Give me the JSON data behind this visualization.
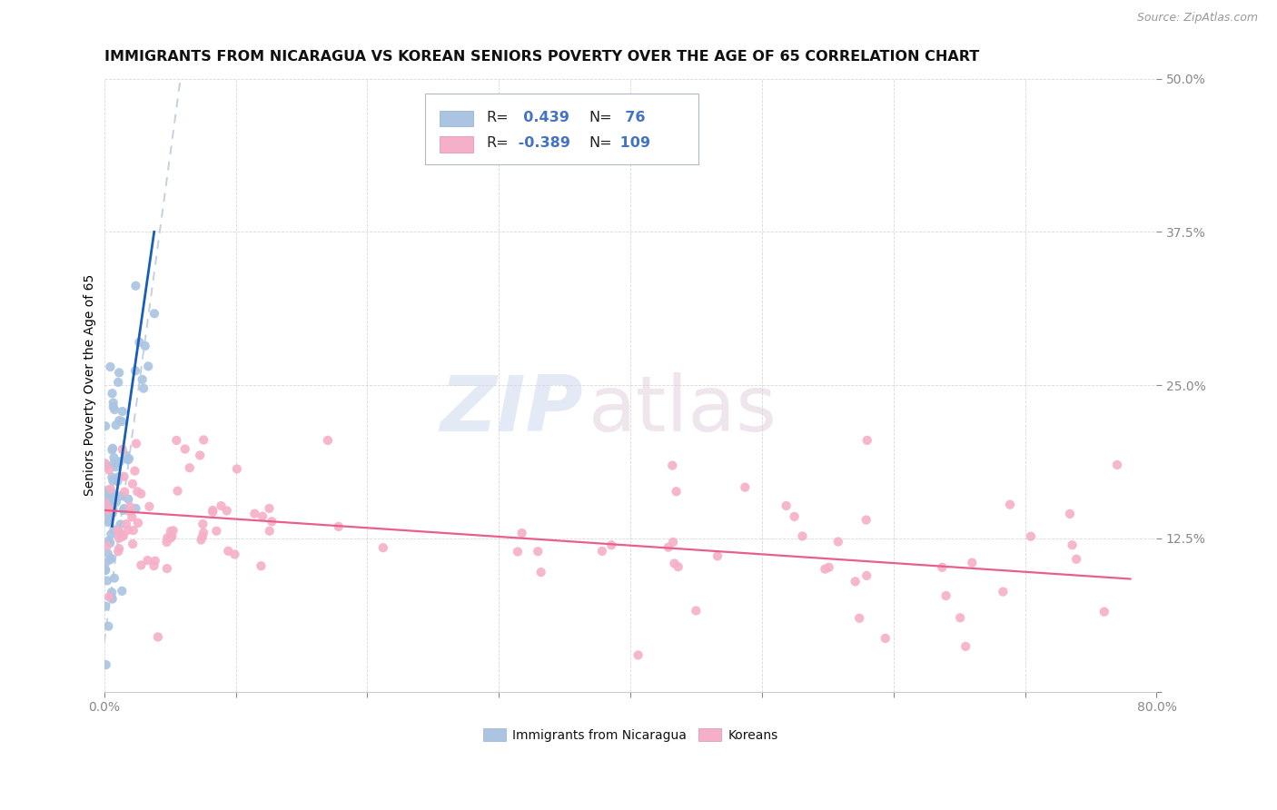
{
  "title": "IMMIGRANTS FROM NICARAGUA VS KOREAN SENIORS POVERTY OVER THE AGE OF 65 CORRELATION CHART",
  "source": "Source: ZipAtlas.com",
  "ylabel": "Seniors Poverty Over the Age of 65",
  "xlim": [
    0.0,
    0.8
  ],
  "ylim": [
    0.0,
    0.5
  ],
  "blue_R": 0.439,
  "blue_N": 76,
  "pink_R": -0.389,
  "pink_N": 109,
  "blue_color": "#aac4e2",
  "pink_color": "#f5afc8",
  "blue_line_color": "#1a5fb4",
  "pink_line_color": "#e8608a",
  "blue_dashed_color": "#c0cce0",
  "legend_label_blue": "Immigrants from Nicaragua",
  "legend_label_pink": "Koreans",
  "watermark_zip": "ZIP",
  "watermark_atlas": "atlas",
  "background_color": "#ffffff",
  "grid_color": "#c8c8c8",
  "tick_color": "#4472c4",
  "title_fontsize": 11.5,
  "axis_label_fontsize": 10,
  "tick_fontsize": 10
}
